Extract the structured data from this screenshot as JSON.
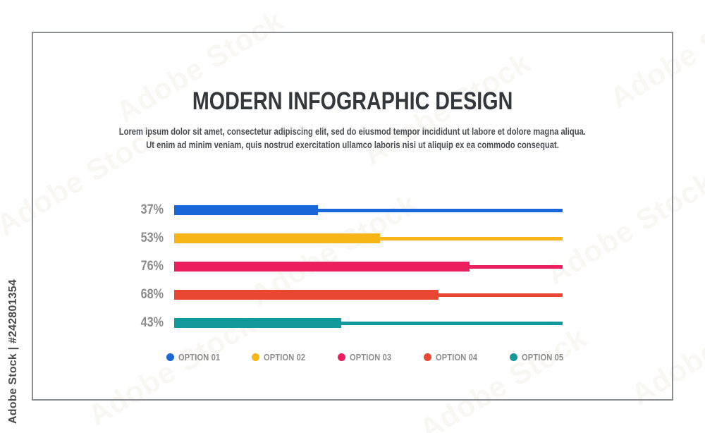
{
  "watermark": {
    "tile_text": "Adobe Stock",
    "credit_vertical": "Adobe Stock | #242801354"
  },
  "header": {
    "title": "MODERN INFOGRAPHIC DESIGN",
    "description_line1": "Lorem ipsum dolor sit amet, consectetur adipiscing elit, sed do eiusmod tempor incididunt ut labore et dolore magna aliqua.",
    "description_line2": "Ut enim ad minim veniam, quis nostrud exercitation ullamco laboris nisi ut aliquip ex ea commodo consequat."
  },
  "chart_data": {
    "type": "bar",
    "orientation": "horizontal",
    "title": "MODERN INFOGRAPHIC DESIGN",
    "categories": [
      "OPTION 01",
      "OPTION 02",
      "OPTION 03",
      "OPTION 04",
      "OPTION 05"
    ],
    "values": [
      37,
      53,
      76,
      68,
      43
    ],
    "value_labels": [
      "37%",
      "53%",
      "76%",
      "68%",
      "43%"
    ],
    "series_colors": [
      "#1866d8",
      "#f8b616",
      "#ed1e5d",
      "#e94731",
      "#12999c"
    ],
    "xlim": [
      0,
      100
    ],
    "grid": false,
    "legend_position": "bottom",
    "bar_style": "thick fill over thin full-width track line of same color"
  },
  "colors": {
    "title_text": "#34373b",
    "body_text": "#4b4e53",
    "label_gray": "#8c8c8c",
    "frame_border": "#8a8d90",
    "background": "#ffffff"
  }
}
